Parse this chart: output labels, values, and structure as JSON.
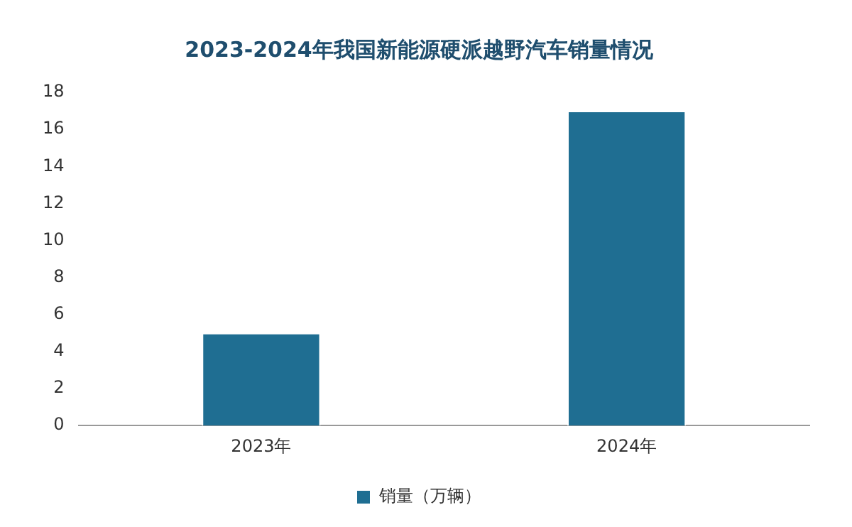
{
  "chart_data": {
    "type": "bar",
    "title": "2023-2024年我国新能源硬派越野汽车销量情况",
    "categories": [
      "2023年",
      "2024年"
    ],
    "series": [
      {
        "name": "销量（万辆）",
        "color": "#1f6e92",
        "values": [
          5,
          17
        ]
      }
    ],
    "ylim": [
      0,
      18
    ],
    "yticks": [
      0,
      2,
      4,
      6,
      8,
      10,
      12,
      14,
      16,
      18
    ],
    "grid": false,
    "legend": "bottom"
  }
}
